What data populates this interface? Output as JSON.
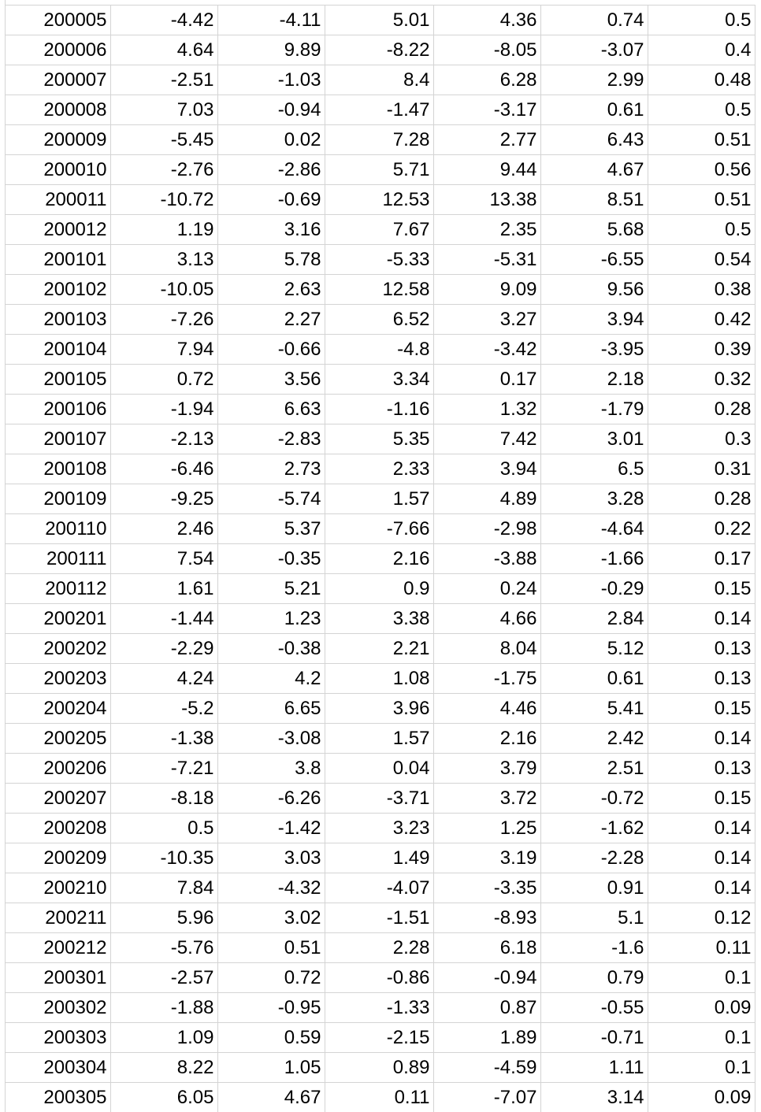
{
  "sheet": {
    "rows": [
      [
        "200005",
        "-4.42",
        "-4.11",
        "5.01",
        "4.36",
        "0.74",
        "0.5"
      ],
      [
        "200006",
        "4.64",
        "9.89",
        "-8.22",
        "-8.05",
        "-3.07",
        "0.4"
      ],
      [
        "200007",
        "-2.51",
        "-1.03",
        "8.4",
        "6.28",
        "2.99",
        "0.48"
      ],
      [
        "200008",
        "7.03",
        "-0.94",
        "-1.47",
        "-3.17",
        "0.61",
        "0.5"
      ],
      [
        "200009",
        "-5.45",
        "0.02",
        "7.28",
        "2.77",
        "6.43",
        "0.51"
      ],
      [
        "200010",
        "-2.76",
        "-2.86",
        "5.71",
        "9.44",
        "4.67",
        "0.56"
      ],
      [
        "200011",
        "-10.72",
        "-0.69",
        "12.53",
        "13.38",
        "8.51",
        "0.51"
      ],
      [
        "200012",
        "1.19",
        "3.16",
        "7.67",
        "2.35",
        "5.68",
        "0.5"
      ],
      [
        "200101",
        "3.13",
        "5.78",
        "-5.33",
        "-5.31",
        "-6.55",
        "0.54"
      ],
      [
        "200102",
        "-10.05",
        "2.63",
        "12.58",
        "9.09",
        "9.56",
        "0.38"
      ],
      [
        "200103",
        "-7.26",
        "2.27",
        "6.52",
        "3.27",
        "3.94",
        "0.42"
      ],
      [
        "200104",
        "7.94",
        "-0.66",
        "-4.8",
        "-3.42",
        "-3.95",
        "0.39"
      ],
      [
        "200105",
        "0.72",
        "3.56",
        "3.34",
        "0.17",
        "2.18",
        "0.32"
      ],
      [
        "200106",
        "-1.94",
        "6.63",
        "-1.16",
        "1.32",
        "-1.79",
        "0.28"
      ],
      [
        "200107",
        "-2.13",
        "-2.83",
        "5.35",
        "7.42",
        "3.01",
        "0.3"
      ],
      [
        "200108",
        "-6.46",
        "2.73",
        "2.33",
        "3.94",
        "6.5",
        "0.31"
      ],
      [
        "200109",
        "-9.25",
        "-5.74",
        "1.57",
        "4.89",
        "3.28",
        "0.28"
      ],
      [
        "200110",
        "2.46",
        "5.37",
        "-7.66",
        "-2.98",
        "-4.64",
        "0.22"
      ],
      [
        "200111",
        "7.54",
        "-0.35",
        "2.16",
        "-3.88",
        "-1.66",
        "0.17"
      ],
      [
        "200112",
        "1.61",
        "5.21",
        "0.9",
        "0.24",
        "-0.29",
        "0.15"
      ],
      [
        "200201",
        "-1.44",
        "1.23",
        "3.38",
        "4.66",
        "2.84",
        "0.14"
      ],
      [
        "200202",
        "-2.29",
        "-0.38",
        "2.21",
        "8.04",
        "5.12",
        "0.13"
      ],
      [
        "200203",
        "4.24",
        "4.2",
        "1.08",
        "-1.75",
        "0.61",
        "0.13"
      ],
      [
        "200204",
        "-5.2",
        "6.65",
        "3.96",
        "4.46",
        "5.41",
        "0.15"
      ],
      [
        "200205",
        "-1.38",
        "-3.08",
        "1.57",
        "2.16",
        "2.42",
        "0.14"
      ],
      [
        "200206",
        "-7.21",
        "3.8",
        "0.04",
        "3.79",
        "2.51",
        "0.13"
      ],
      [
        "200207",
        "-8.18",
        "-6.26",
        "-3.71",
        "3.72",
        "-0.72",
        "0.15"
      ],
      [
        "200208",
        "0.5",
        "-1.42",
        "3.23",
        "1.25",
        "-1.62",
        "0.14"
      ],
      [
        "200209",
        "-10.35",
        "3.03",
        "1.49",
        "3.19",
        "-2.28",
        "0.14"
      ],
      [
        "200210",
        "7.84",
        "-4.32",
        "-4.07",
        "-3.35",
        "0.91",
        "0.14"
      ],
      [
        "200211",
        "5.96",
        "3.02",
        "-1.51",
        "-8.93",
        "5.1",
        "0.12"
      ],
      [
        "200212",
        "-5.76",
        "0.51",
        "2.28",
        "6.18",
        "-1.6",
        "0.11"
      ],
      [
        "200301",
        "-2.57",
        "0.72",
        "-0.86",
        "-0.94",
        "0.79",
        "0.1"
      ],
      [
        "200302",
        "-1.88",
        "-0.95",
        "-1.33",
        "0.87",
        "-0.55",
        "0.09"
      ],
      [
        "200303",
        "1.09",
        "0.59",
        "-2.15",
        "1.89",
        "-0.71",
        "0.1"
      ],
      [
        "200304",
        "8.22",
        "1.05",
        "0.89",
        "-4.59",
        "1.11",
        "0.1"
      ],
      [
        "200305",
        "6.05",
        "4.67",
        "0.11",
        "-7.07",
        "3.14",
        "0.09"
      ]
    ]
  }
}
